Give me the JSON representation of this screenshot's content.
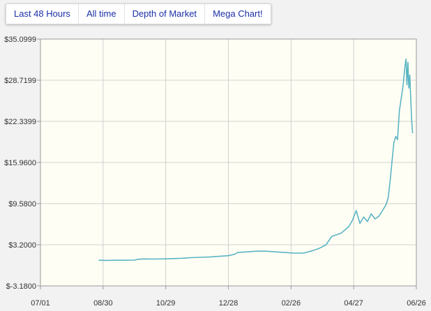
{
  "tabs": [
    {
      "label": "Last 48 Hours"
    },
    {
      "label": "All time"
    },
    {
      "label": "Depth of Market"
    },
    {
      "label": "Mega Chart!"
    }
  ],
  "colors": {
    "plot_background": "#fffef4",
    "series_line": "#5ab4c4",
    "grid": "#d0d0d0",
    "axis": "#999999"
  },
  "chart_data": {
    "type": "line",
    "title": "",
    "xlabel": "",
    "ylabel": "",
    "grid": true,
    "legend": "none",
    "ylim": [
      -3.18,
      35.0999
    ],
    "y_ticks": [
      "$35.0999",
      "$28.7199",
      "$22.3399",
      "$15.9600",
      "$9.5800",
      "$3.2000",
      "$-3.1800"
    ],
    "y_tick_values": [
      35.0999,
      28.7199,
      22.3399,
      15.96,
      9.58,
      3.2,
      -3.18
    ],
    "x_ticks": [
      "07/01",
      "08/30",
      "10/29",
      "12/28",
      "02/26",
      "04/27",
      "06/26"
    ],
    "series": [
      {
        "values": [
          [
            0.31,
            0.8
          ],
          [
            0.35,
            0.78
          ],
          [
            0.4,
            0.8
          ],
          [
            0.45,
            0.8
          ],
          [
            0.5,
            0.82
          ],
          [
            0.52,
            0.95
          ],
          [
            0.55,
            1.0
          ],
          [
            0.6,
            0.98
          ],
          [
            0.65,
            1.0
          ],
          [
            0.7,
            1.05
          ],
          [
            0.75,
            1.1
          ],
          [
            0.8,
            1.2
          ],
          [
            0.85,
            1.25
          ],
          [
            0.9,
            1.3
          ],
          [
            0.95,
            1.4
          ],
          [
            1.0,
            1.5
          ],
          [
            1.03,
            1.7
          ],
          [
            1.05,
            2.0
          ],
          [
            1.1,
            2.1
          ],
          [
            1.15,
            2.2
          ],
          [
            1.2,
            2.2
          ],
          [
            1.25,
            2.1
          ],
          [
            1.3,
            2.0
          ],
          [
            1.35,
            1.9
          ],
          [
            1.4,
            1.9
          ],
          [
            1.45,
            2.3
          ],
          [
            1.48,
            2.6
          ],
          [
            1.5,
            2.9
          ],
          [
            1.52,
            3.2
          ],
          [
            1.55,
            4.5
          ],
          [
            1.58,
            4.8
          ],
          [
            1.6,
            5.0
          ],
          [
            1.62,
            5.5
          ],
          [
            1.64,
            6.0
          ],
          [
            1.66,
            7.0
          ],
          [
            1.68,
            8.5
          ],
          [
            1.7,
            6.5
          ],
          [
            1.72,
            7.5
          ],
          [
            1.74,
            6.8
          ],
          [
            1.76,
            8.0
          ],
          [
            1.78,
            7.2
          ],
          [
            1.8,
            7.6
          ],
          [
            1.82,
            8.5
          ],
          [
            1.84,
            9.5
          ],
          [
            1.85,
            10.5
          ],
          [
            1.86,
            13.0
          ],
          [
            1.87,
            16.0
          ],
          [
            1.88,
            19.0
          ],
          [
            1.89,
            20.0
          ],
          [
            1.9,
            19.5
          ],
          [
            1.91,
            24.0
          ],
          [
            1.92,
            26.0
          ],
          [
            1.93,
            28.0
          ],
          [
            1.94,
            31.0
          ],
          [
            1.945,
            32.0
          ],
          [
            1.95,
            28.0
          ],
          [
            1.955,
            31.5
          ],
          [
            1.96,
            27.5
          ],
          [
            1.965,
            29.5
          ],
          [
            1.97,
            26.0
          ],
          [
            1.975,
            22.5
          ],
          [
            1.98,
            20.5
          ]
        ]
      }
    ]
  }
}
